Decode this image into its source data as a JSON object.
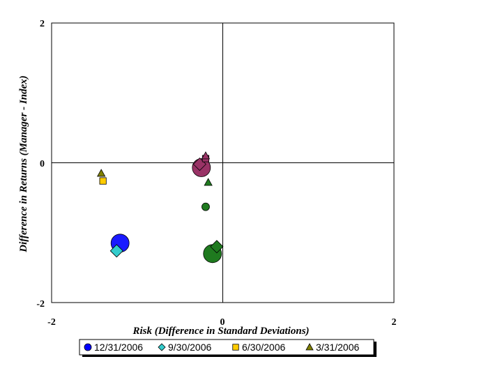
{
  "chart_data": {
    "type": "scatter",
    "xlabel": "Risk (Difference in Standard Deviations)",
    "ylabel": "Difference in Returns (Manager - Index)",
    "xlim": [
      -2,
      2
    ],
    "ylim": [
      -2,
      2
    ],
    "xticks": [
      "-2",
      "0",
      "2"
    ],
    "yticks": [
      "2",
      "0",
      "-2"
    ],
    "grid": false,
    "legend_position": "bottom",
    "series": [
      {
        "name": "12/31/2006",
        "marker": "circle",
        "legend_color": "#0000ff",
        "points": [
          {
            "x": -1.2,
            "y": -1.15,
            "color": "#1a1aff",
            "size": "large"
          },
          {
            "x": -0.25,
            "y": -0.07,
            "color": "#993366",
            "size": "large"
          },
          {
            "x": -0.12,
            "y": -1.3,
            "color": "#1f7a1f",
            "size": "large"
          },
          {
            "x": -0.2,
            "y": -0.63,
            "color": "#1f7a1f",
            "size": "small"
          }
        ]
      },
      {
        "name": "9/30/2006",
        "marker": "diamond",
        "legend_color": "#33cccc",
        "points": [
          {
            "x": -1.24,
            "y": -1.26,
            "color": "#33cccc",
            "size": "medium"
          },
          {
            "x": -0.27,
            "y": -0.02,
            "color": "#993366",
            "size": "medium"
          },
          {
            "x": -0.07,
            "y": -1.2,
            "color": "#1f7a1f",
            "size": "medium"
          }
        ]
      },
      {
        "name": "6/30/2006",
        "marker": "square",
        "legend_color": "#ffcc00",
        "points": [
          {
            "x": -1.4,
            "y": -0.26,
            "color": "#ffcc00",
            "size": "small"
          },
          {
            "x": -0.2,
            "y": 0.06,
            "color": "#993366",
            "size": "small"
          }
        ]
      },
      {
        "name": "3/31/2006",
        "marker": "triangle",
        "legend_color": "#808000",
        "points": [
          {
            "x": -1.42,
            "y": -0.15,
            "color": "#808000",
            "size": "small"
          },
          {
            "x": -0.2,
            "y": 0.1,
            "color": "#993366",
            "size": "small"
          },
          {
            "x": -0.17,
            "y": -0.28,
            "color": "#1f7a1f",
            "size": "small"
          }
        ]
      }
    ]
  }
}
